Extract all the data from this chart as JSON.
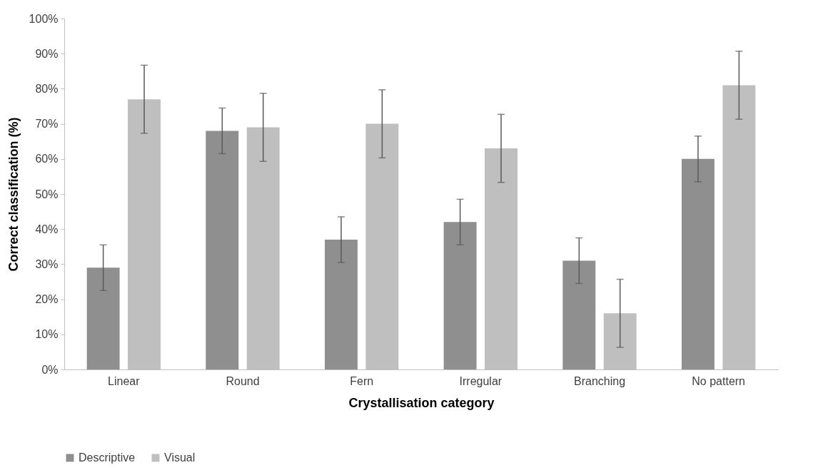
{
  "chart_data": {
    "type": "bar",
    "xlabel": "Crystallisation category",
    "ylabel": "Correct classification (%)",
    "categories": [
      "Linear",
      "Round",
      "Fern",
      "Irregular",
      "Branching",
      "No pattern"
    ],
    "series": [
      {
        "name": "Descriptive",
        "color": "#8f8f8f",
        "values": [
          29,
          68,
          37,
          42,
          31,
          60
        ],
        "errors": [
          6.5,
          6.5,
          6.5,
          6.5,
          6.5,
          6.5
        ]
      },
      {
        "name": "Visual",
        "color": "#bfbfbf",
        "values": [
          77,
          69,
          70,
          63,
          16,
          81
        ],
        "errors": [
          9.7,
          9.7,
          9.7,
          9.7,
          9.7,
          9.7
        ]
      }
    ],
    "ylim": [
      0,
      100
    ],
    "yticks": [
      {
        "value": 0,
        "label": "0%"
      },
      {
        "value": 10,
        "label": "10%"
      },
      {
        "value": 20,
        "label": "20%"
      },
      {
        "value": 30,
        "label": "30%"
      },
      {
        "value": 40,
        "label": "40%"
      },
      {
        "value": 50,
        "label": "50%"
      },
      {
        "value": 60,
        "label": "60%"
      },
      {
        "value": 70,
        "label": "70%"
      },
      {
        "value": 80,
        "label": "80%"
      },
      {
        "value": 90,
        "label": "90%"
      },
      {
        "value": 100,
        "label": "100%"
      }
    ],
    "grid": false,
    "legend": "bottom"
  }
}
